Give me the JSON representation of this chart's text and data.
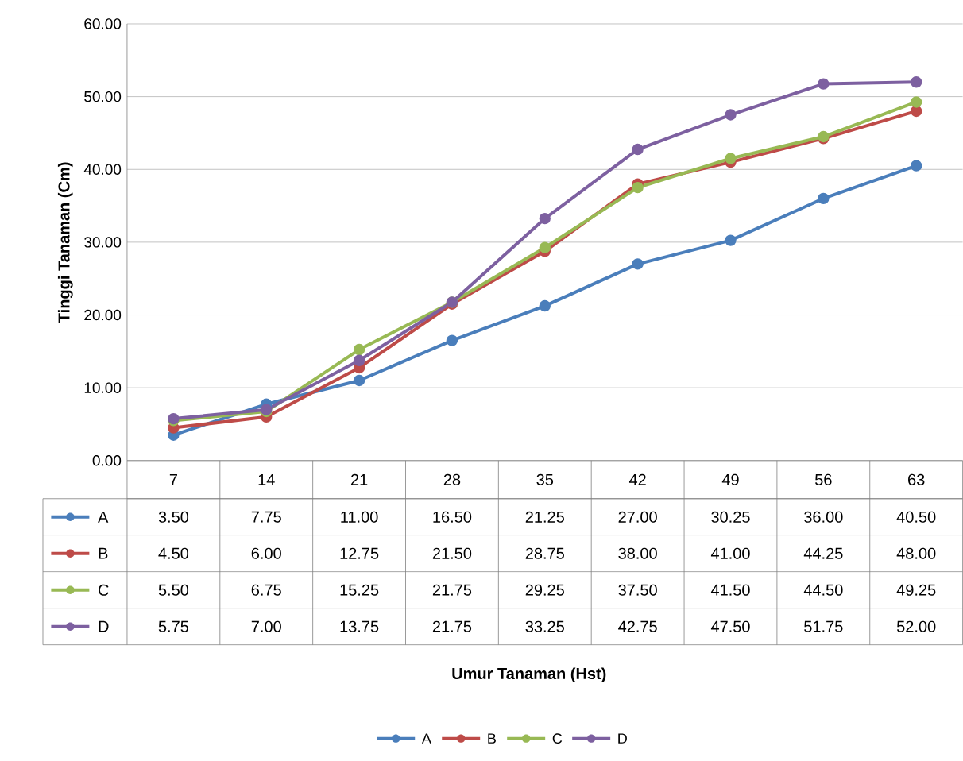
{
  "chart_data": {
    "type": "line",
    "ylabel": "Tinggi Tanaman (Cm)",
    "annotations": [
      "Umur Tanaman (Hst)"
    ],
    "categories": [
      "7",
      "14",
      "21",
      "28",
      "35",
      "42",
      "49",
      "56",
      "63"
    ],
    "series": [
      {
        "name": "A",
        "color": "#4a7ebb",
        "values": [
          3.5,
          7.75,
          11.0,
          16.5,
          21.25,
          27.0,
          30.25,
          36.0,
          40.5
        ],
        "value_labels": [
          "3.50",
          "7.75",
          "11.00",
          "16.50",
          "21.25",
          "27.00",
          "30.25",
          "36.00",
          "40.50"
        ]
      },
      {
        "name": "B",
        "color": "#be4b48",
        "values": [
          4.5,
          6.0,
          12.75,
          21.5,
          28.75,
          38.0,
          41.0,
          44.25,
          48.0
        ],
        "value_labels": [
          "4.50",
          "6.00",
          "12.75",
          "21.50",
          "28.75",
          "38.00",
          "41.00",
          "44.25",
          "48.00"
        ]
      },
      {
        "name": "C",
        "color": "#98b954",
        "values": [
          5.5,
          6.75,
          15.25,
          21.75,
          29.25,
          37.5,
          41.5,
          44.5,
          49.25
        ],
        "value_labels": [
          "5.50",
          "6.75",
          "15.25",
          "21.75",
          "29.25",
          "37.50",
          "41.50",
          "44.50",
          "49.25"
        ]
      },
      {
        "name": "D",
        "color": "#7d60a0",
        "values": [
          5.75,
          7.0,
          13.75,
          21.75,
          33.25,
          42.75,
          47.5,
          51.75,
          52.0
        ],
        "value_labels": [
          "5.75",
          "7.00",
          "13.75",
          "21.75",
          "33.25",
          "42.75",
          "47.50",
          "51.75",
          "52.00"
        ]
      }
    ],
    "ylim": [
      0,
      60
    ],
    "yticks": [
      {
        "value": 0,
        "label": "0.00"
      },
      {
        "value": 10,
        "label": "10.00"
      },
      {
        "value": 20,
        "label": "20.00"
      },
      {
        "value": 30,
        "label": "30.00"
      },
      {
        "value": 40,
        "label": "40.00"
      },
      {
        "value": 50,
        "label": "50.00"
      },
      {
        "value": 60,
        "label": "60.00"
      }
    ],
    "grid": "y",
    "legend": "bottom",
    "marker": "circle",
    "line_style": "solid"
  }
}
